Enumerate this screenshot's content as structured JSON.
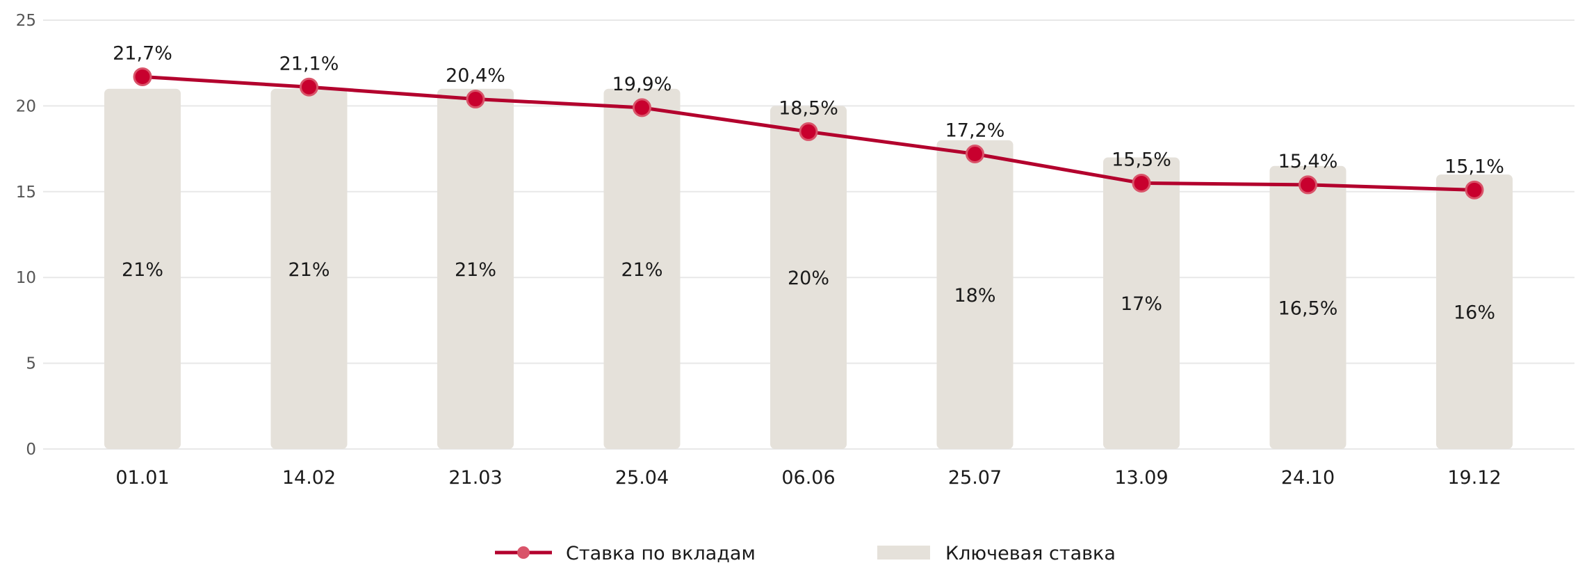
{
  "chart_data": {
    "type": "bar",
    "categories": [
      "01.01",
      "14.02",
      "21.03",
      "25.04",
      "06.06",
      "25.07",
      "13.09",
      "24.10",
      "19.12"
    ],
    "ylim": [
      0,
      25
    ],
    "yticks": [
      "0",
      "5",
      "10",
      "15",
      "20",
      "25"
    ],
    "grid": true,
    "legend_position": "bottom",
    "series": [
      {
        "name": "Ключевая ставка",
        "type": "bar",
        "values": [
          21,
          21,
          21,
          21,
          20,
          18,
          17,
          16.5,
          16
        ],
        "labels": [
          "21%",
          "21%",
          "21%",
          "21%",
          "20%",
          "18%",
          "17%",
          "16,5%",
          "16%"
        ],
        "color": "#e5e1da"
      },
      {
        "name": "Ставка по вкладам",
        "type": "line",
        "values": [
          21.7,
          21.1,
          20.4,
          19.9,
          18.5,
          17.2,
          15.5,
          15.4,
          15.1
        ],
        "labels": [
          "21,7%",
          "21,1%",
          "20,4%",
          "19,9%",
          "18,5%",
          "17,2%",
          "15,5%",
          "15,4%",
          "15,1%"
        ],
        "color": "#b3002d",
        "marker_color": "#c8002e",
        "marker_edge_color": "#d9546a"
      }
    ],
    "gridline_color": "#e8e8e8"
  }
}
